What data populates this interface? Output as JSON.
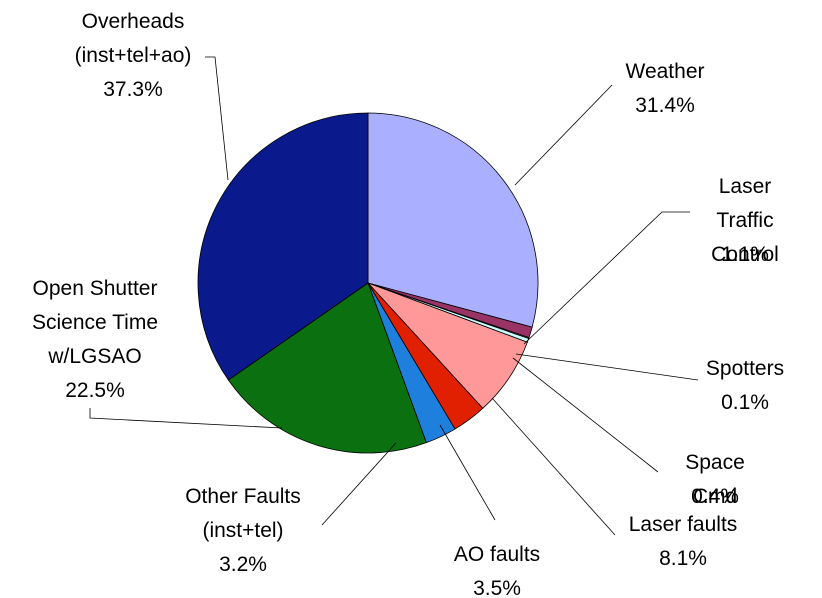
{
  "chart_data": {
    "type": "pie",
    "categories": [
      "Weather",
      "Laser Traffic\nControl",
      "Spotters",
      "Space Cmd",
      "Laser faults",
      "AO faults",
      "Other Faults\n(inst+tel)",
      "Open Shutter\nScience Time\nw/LGSAO",
      "Overheads\n(inst+tel+ao)"
    ],
    "values": [
      31.4,
      1.1,
      0.1,
      0.4,
      8.1,
      3.5,
      3.2,
      22.5,
      37.3
    ],
    "value_labels": [
      "31.4%",
      "1.1%",
      "0.1%",
      "0.4%",
      "8.1%",
      "3.5%",
      "3.2%",
      "22.5%",
      "37.3%"
    ],
    "colors": [
      "#aab0ff",
      "#993366",
      "#ffffff",
      "#ccffff",
      "#ff9999",
      "#e02000",
      "#1e80dc",
      "#0a7010",
      "#0a1a8c"
    ]
  }
}
